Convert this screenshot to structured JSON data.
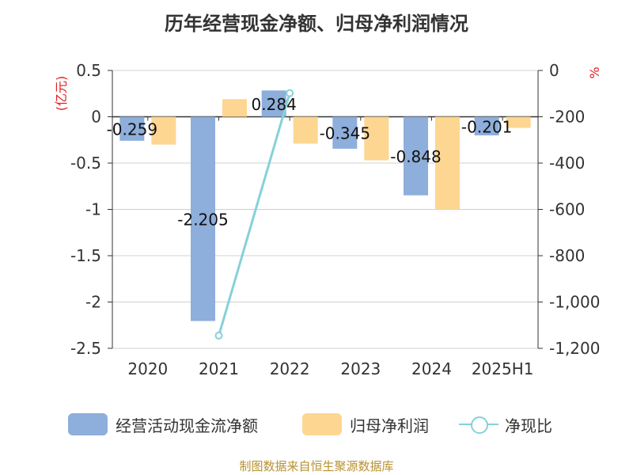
{
  "title": "历年经营现金净额、归母净利润情况",
  "source": "制图数据来自恒生聚源数据库",
  "chart_data": {
    "type": "bar",
    "title": "历年经营现金净额、归母净利润情况",
    "categories": [
      "2020",
      "2021",
      "2022",
      "2023",
      "2024",
      "2025H1"
    ],
    "left_axis": {
      "unit": "(亿元)",
      "range": [
        -2.5,
        0.5
      ],
      "ticks": [
        0.5,
        0,
        -0.5,
        -1,
        -1.5,
        -2,
        -2.5
      ],
      "tick_labels": [
        "0.5",
        "0",
        "-0.5",
        "-1",
        "-1.5",
        "-2",
        "-2.5"
      ]
    },
    "right_axis": {
      "unit": "%",
      "range": [
        -1200,
        0
      ],
      "ticks": [
        0,
        -200,
        -400,
        -600,
        -800,
        -1000,
        -1200
      ],
      "tick_labels": [
        "0",
        "-200",
        "-400",
        "-600",
        "-800",
        "-1,000",
        "-1,200"
      ]
    },
    "series": [
      {
        "name": "经营活动现金流净额",
        "type": "bar",
        "axis": "left",
        "color": "#8eaedb",
        "values": [
          -0.259,
          -2.205,
          0.284,
          -0.345,
          -0.848,
          -0.201
        ],
        "labels": [
          "-0.259",
          "-2.205",
          "0.284",
          "-0.345",
          "-0.848",
          "-0.201"
        ]
      },
      {
        "name": "归母净利润",
        "type": "bar",
        "axis": "left",
        "color": "#fdd691",
        "values": [
          -0.3,
          0.19,
          -0.29,
          -0.47,
          -1.0,
          -0.12
        ]
      },
      {
        "name": "净现比",
        "type": "line",
        "axis": "right",
        "color": "#86d1d9",
        "points": [
          {
            "x": "2021",
            "y": -1145
          },
          {
            "x": "2022",
            "y": -98
          }
        ]
      }
    ],
    "legend_position": "bottom",
    "grid": true
  }
}
